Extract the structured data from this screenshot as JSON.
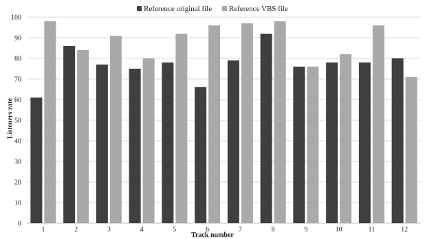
{
  "chart_data": {
    "type": "bar",
    "title": "",
    "xlabel": "Track number",
    "ylabel": "Listeners rate",
    "categories": [
      "1",
      "2",
      "3",
      "4",
      "5",
      "6",
      "7",
      "8",
      "9",
      "10",
      "11",
      "12"
    ],
    "series": [
      {
        "name": "Reference original file",
        "color": "#3f3f3f",
        "values": [
          61,
          86,
          77,
          75,
          78,
          66,
          79,
          92,
          76,
          78,
          78,
          80
        ]
      },
      {
        "name": "Reference VBS file",
        "color": "#a9a9a9",
        "values": [
          98,
          84,
          91,
          80,
          92,
          96,
          97,
          98,
          76,
          82,
          96,
          71
        ]
      }
    ],
    "ylim": [
      0,
      100
    ],
    "yticks": [
      0,
      10,
      20,
      30,
      40,
      50,
      60,
      70,
      80,
      90,
      100
    ],
    "grid": true,
    "gridline_color": "#d9d9d9",
    "legend_position": "top"
  }
}
